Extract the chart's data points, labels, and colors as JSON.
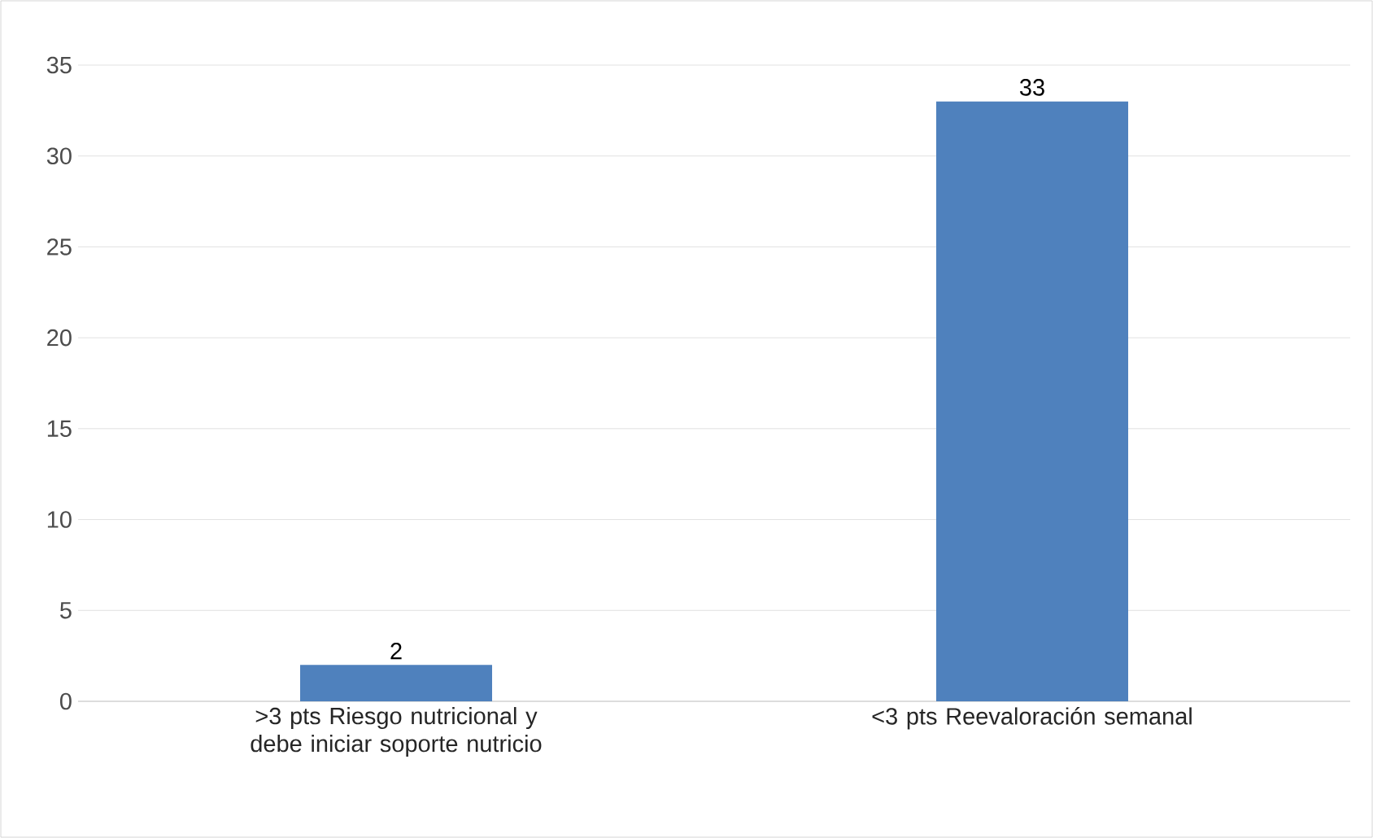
{
  "chart_data": {
    "type": "bar",
    "categories": [
      ">3 pts Riesgo nutricional y debe iniciar soporte nutricio",
      "<3 pts Reevaloración semanal"
    ],
    "values": [
      2,
      33
    ],
    "color": "#4f81bd",
    "ylim": [
      0,
      35
    ],
    "yticks": [
      0,
      5,
      10,
      15,
      20,
      25,
      30,
      35
    ],
    "grid": "y",
    "data_labels": true
  }
}
